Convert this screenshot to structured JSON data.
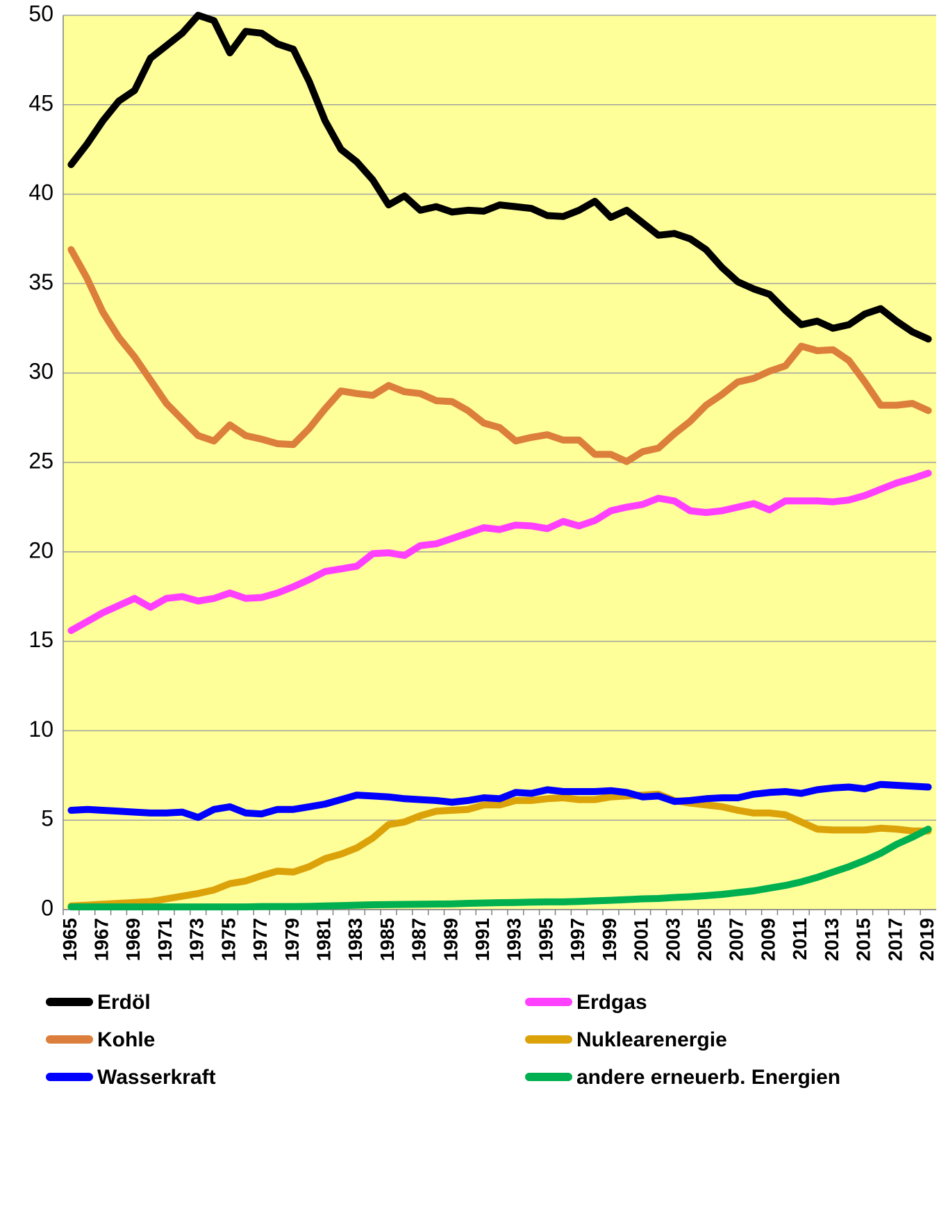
{
  "chart_data": {
    "type": "line",
    "categories": [
      "1965",
      null,
      "1967",
      null,
      "1969",
      null,
      "1971",
      null,
      "1973",
      null,
      "1975",
      null,
      "1977",
      null,
      "1979",
      null,
      "1981",
      null,
      "1983",
      null,
      "1985",
      null,
      "1987",
      null,
      "1989",
      null,
      "1991",
      null,
      "1993",
      null,
      "1995",
      null,
      "1997",
      null,
      "1999",
      null,
      "2001",
      null,
      "2003",
      null,
      "2005",
      null,
      "2007",
      null,
      "2009",
      null,
      "2011",
      null,
      "2013",
      null,
      "2015",
      null,
      "2017",
      null,
      "2019"
    ],
    "series": [
      {
        "name": "Erdöl",
        "color": "#000000",
        "values": [
          41.65,
          42.8,
          44.1,
          45.2,
          45.8,
          47.6,
          48.3,
          49,
          50,
          49.7,
          47.9,
          49.1,
          49,
          48.4,
          48.1,
          46.3,
          44.1,
          42.5,
          41.8,
          40.8,
          39.4,
          39.9,
          39.1,
          39.3,
          39,
          39.1,
          39.05,
          39.4,
          39.3,
          39.2,
          38.8,
          38.75,
          39.1,
          39.6,
          38.7,
          39.1,
          38.4,
          37.7,
          37.8,
          37.5,
          36.9,
          35.9,
          35.1,
          34.7,
          34.4,
          33.5,
          32.7,
          32.9,
          32.5,
          32.7,
          33.3,
          33.6,
          32.9,
          32.3,
          31.9
        ]
      },
      {
        "name": "Erdgas",
        "color": "#ff40ff",
        "values": [
          15.6,
          16.1,
          16.6,
          17,
          17.4,
          16.9,
          17.4,
          17.5,
          17.25,
          17.4,
          17.7,
          17.4,
          17.45,
          17.7,
          18.05,
          18.45,
          18.9,
          19.05,
          19.2,
          19.9,
          19.95,
          19.8,
          20.35,
          20.45,
          20.75,
          21.05,
          21.35,
          21.25,
          21.5,
          21.45,
          21.3,
          21.7,
          21.45,
          21.75,
          22.3,
          22.5,
          22.65,
          23,
          22.85,
          22.3,
          22.2,
          22.3,
          22.5,
          22.7,
          22.35,
          22.85,
          22.85,
          22.85,
          22.8,
          22.9,
          23.15,
          23.5,
          23.85,
          24.1,
          24.4
        ]
      },
      {
        "name": "Kohle",
        "color": "#dc7f3c",
        "values": [
          36.9,
          35.3,
          33.4,
          32,
          30.9,
          29.6,
          28.3,
          27.4,
          26.5,
          26.2,
          27.1,
          26.5,
          26.3,
          26.05,
          26,
          26.9,
          28,
          29,
          28.85,
          28.75,
          29.3,
          28.95,
          28.85,
          28.45,
          28.4,
          27.9,
          27.2,
          26.95,
          26.2,
          26.4,
          26.55,
          26.25,
          26.25,
          25.45,
          25.45,
          25.05,
          25.6,
          25.8,
          26.6,
          27.3,
          28.2,
          28.8,
          29.5,
          29.7,
          30.1,
          30.4,
          31.5,
          31.25,
          31.3,
          30.7,
          29.5,
          28.2,
          28.2,
          28.3,
          27.9
        ]
      },
      {
        "name": "Nuklearenergie",
        "color": "#dca20a",
        "values": [
          0.2,
          0.25,
          0.3,
          0.35,
          0.4,
          0.45,
          0.6,
          0.75,
          0.9,
          1.1,
          1.45,
          1.6,
          1.9,
          2.15,
          2.1,
          2.4,
          2.85,
          3.1,
          3.45,
          4,
          4.75,
          4.9,
          5.25,
          5.5,
          5.55,
          5.6,
          5.85,
          5.85,
          6.1,
          6.1,
          6.2,
          6.25,
          6.15,
          6.15,
          6.3,
          6.35,
          6.4,
          6.45,
          6.1,
          5.95,
          5.85,
          5.75,
          5.55,
          5.4,
          5.4,
          5.3,
          4.9,
          4.5,
          4.45,
          4.45,
          4.45,
          4.55,
          4.5,
          4.4,
          4.4
        ]
      },
      {
        "name": "Wasserkraft",
        "color": "#0000ff",
        "values": [
          5.55,
          5.6,
          5.55,
          5.5,
          5.45,
          5.4,
          5.4,
          5.45,
          5.15,
          5.6,
          5.75,
          5.4,
          5.35,
          5.6,
          5.6,
          5.75,
          5.9,
          6.15,
          6.4,
          6.35,
          6.3,
          6.2,
          6.15,
          6.1,
          6,
          6.1,
          6.25,
          6.2,
          6.55,
          6.5,
          6.7,
          6.6,
          6.6,
          6.6,
          6.65,
          6.55,
          6.3,
          6.35,
          6.05,
          6.1,
          6.2,
          6.25,
          6.25,
          6.45,
          6.55,
          6.6,
          6.5,
          6.7,
          6.8,
          6.85,
          6.75,
          7,
          6.95,
          6.9,
          6.85
        ]
      },
      {
        "name": "andere erneuerb. Energien",
        "color": "#00b050",
        "values": [
          0.15,
          0.15,
          0.15,
          0.15,
          0.15,
          0.15,
          0.15,
          0.15,
          0.15,
          0.15,
          0.15,
          0.15,
          0.17,
          0.17,
          0.17,
          0.18,
          0.2,
          0.22,
          0.25,
          0.27,
          0.28,
          0.29,
          0.3,
          0.31,
          0.32,
          0.35,
          0.37,
          0.39,
          0.4,
          0.42,
          0.43,
          0.43,
          0.46,
          0.49,
          0.52,
          0.56,
          0.6,
          0.62,
          0.68,
          0.72,
          0.78,
          0.85,
          0.95,
          1.05,
          1.2,
          1.35,
          1.55,
          1.8,
          2.1,
          2.4,
          2.75,
          3.15,
          3.65,
          4.05,
          4.5
        ]
      }
    ],
    "ylim": [
      0,
      50
    ],
    "yticks": [
      0,
      5,
      10,
      15,
      20,
      25,
      30,
      35,
      40,
      45,
      50
    ],
    "grid": true,
    "plot_background": "#ffff99"
  }
}
